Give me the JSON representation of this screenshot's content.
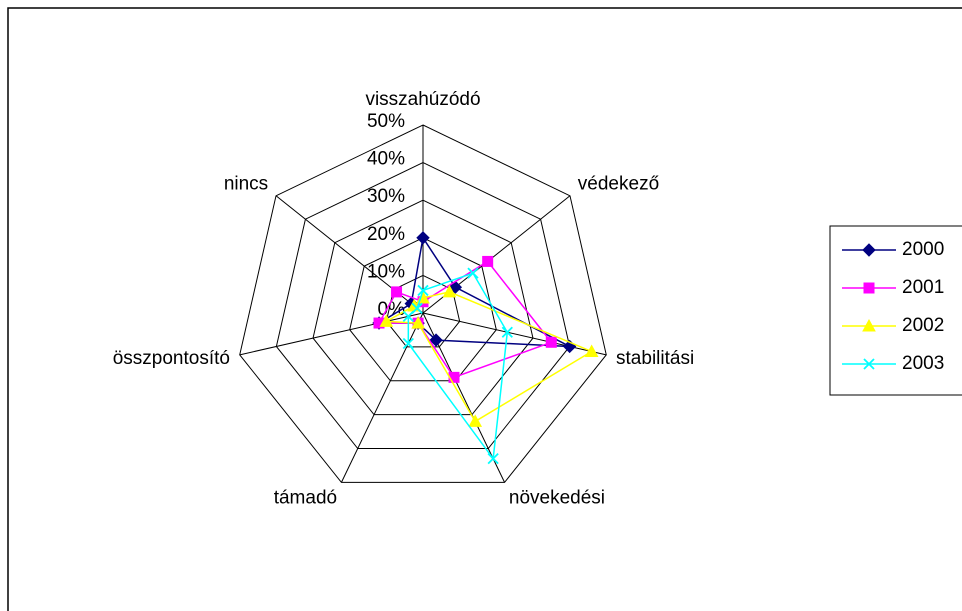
{
  "chart_data": {
    "type": "radar",
    "categories": [
      "visszahúzódó",
      "védekező",
      "stabilitási",
      "növekedési",
      "támadó",
      "összpontosító",
      "nincs"
    ],
    "series": [
      {
        "name": "2000",
        "color": "#000080",
        "marker": "diamond",
        "values": [
          20,
          11,
          40,
          8,
          3,
          12,
          4
        ]
      },
      {
        "name": "2001",
        "color": "#ff00ff",
        "marker": "square",
        "values": [
          3,
          22,
          35,
          19,
          3,
          12,
          9
        ]
      },
      {
        "name": "2002",
        "color": "#ffff00",
        "marker": "triangle",
        "values": [
          4,
          9,
          46,
          32,
          3,
          10,
          3
        ]
      },
      {
        "name": "2003",
        "color": "#00ffff",
        "marker": "x",
        "values": [
          6,
          17,
          23,
          43,
          9,
          4,
          2
        ]
      }
    ],
    "ylim": [
      0,
      50
    ],
    "yticks": [
      {
        "value": 0,
        "label": "0%"
      },
      {
        "value": 10,
        "label": "10%"
      },
      {
        "value": 20,
        "label": "20%"
      },
      {
        "value": 30,
        "label": "30%"
      },
      {
        "value": 40,
        "label": "40%"
      },
      {
        "value": 50,
        "label": "50%"
      }
    ],
    "legend": "right",
    "grid": true
  }
}
